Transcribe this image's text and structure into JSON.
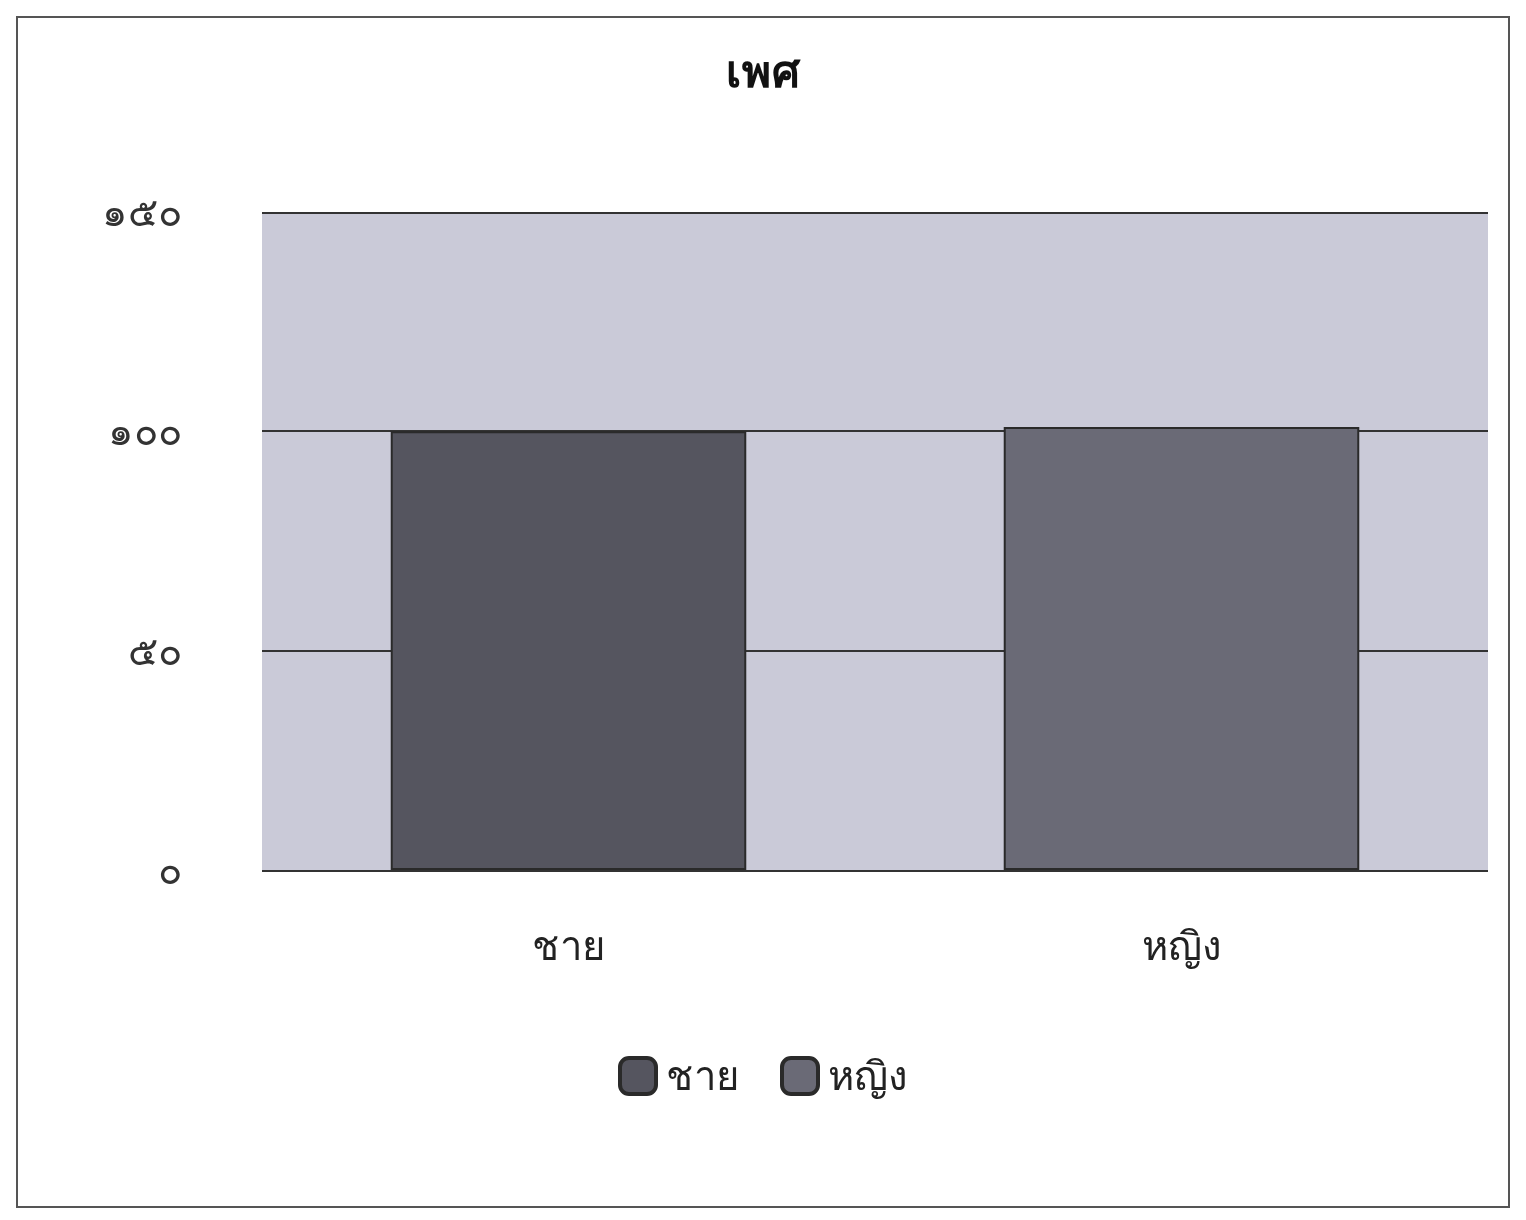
{
  "chart_data": {
    "type": "bar",
    "title": "เพศ",
    "categories": [
      "ชาย",
      "หญิง"
    ],
    "series": [
      {
        "name": "ชาย",
        "color": "#55555f",
        "values": [
          100,
          null
        ]
      },
      {
        "name": "หญิง",
        "color": "#6a6a76",
        "values": [
          null,
          101
        ]
      }
    ],
    "ylim": [
      0,
      150
    ],
    "yticks": [
      {
        "value": 0,
        "label": "๐"
      },
      {
        "value": 50,
        "label": "๕๐"
      },
      {
        "value": 100,
        "label": "๑๐๐"
      },
      {
        "value": 150,
        "label": "๑๕๐"
      }
    ],
    "grid": "y",
    "legend": "bottom"
  }
}
